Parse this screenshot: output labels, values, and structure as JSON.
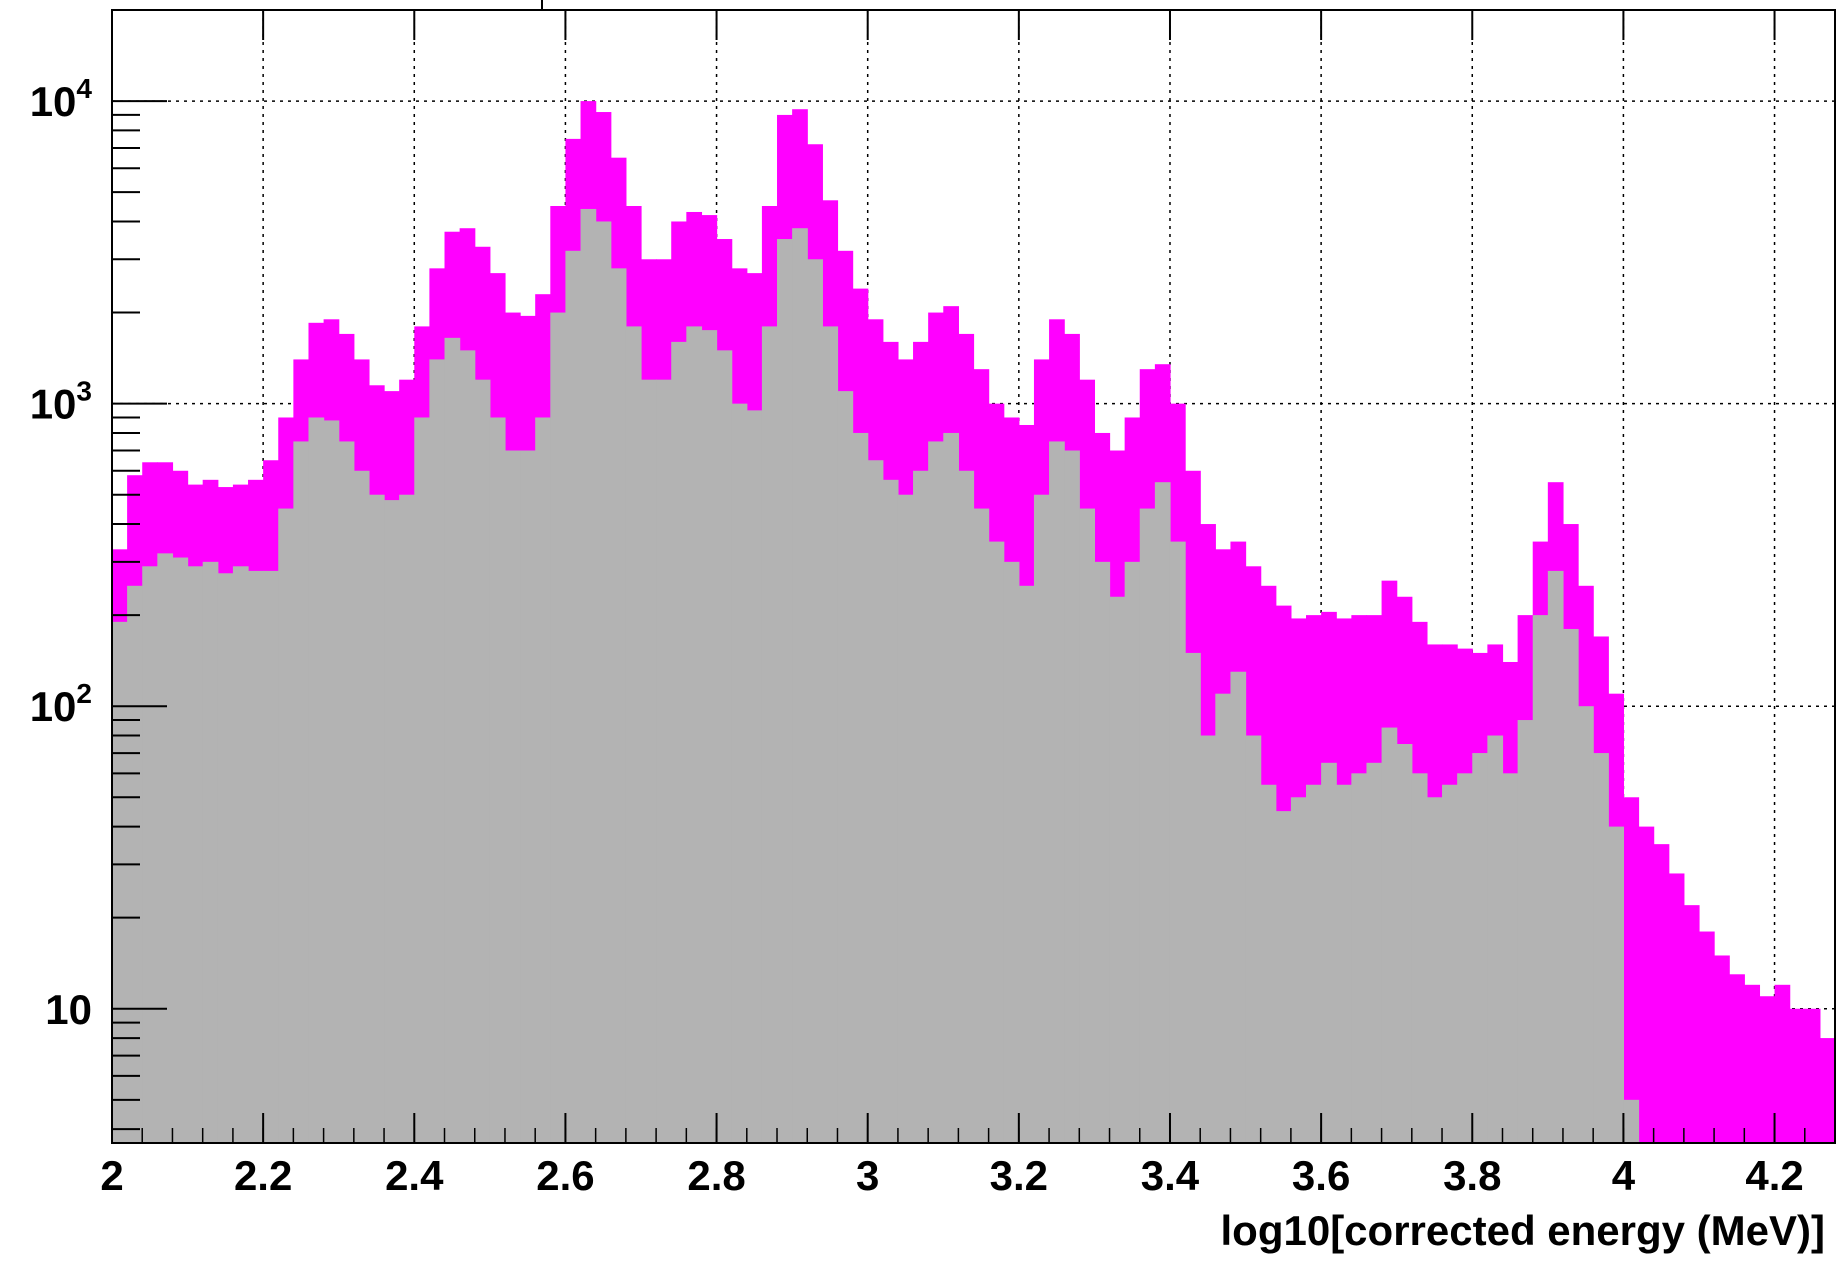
{
  "chart_data": {
    "type": "histogram",
    "title": "",
    "xlabel": "log10[corrected energy (MeV)]",
    "ylabel": "",
    "xlim": [
      2.0,
      4.28
    ],
    "ylim": [
      3.6,
      20000
    ],
    "y_scale": "log",
    "grid": true,
    "grid_style": "dotted",
    "legend": "none",
    "x_ticks": [
      {
        "value": 2.0,
        "label": "2"
      },
      {
        "value": 2.2,
        "label": "2.2"
      },
      {
        "value": 2.4,
        "label": "2.4"
      },
      {
        "value": 2.6,
        "label": "2.6"
      },
      {
        "value": 2.8,
        "label": "2.8"
      },
      {
        "value": 3.0,
        "label": "3"
      },
      {
        "value": 3.2,
        "label": "3.2"
      },
      {
        "value": 3.4,
        "label": "3.4"
      },
      {
        "value": 3.6,
        "label": "3.6"
      },
      {
        "value": 3.8,
        "label": "3.8"
      },
      {
        "value": 4.0,
        "label": "4"
      },
      {
        "value": 4.2,
        "label": "4.2"
      }
    ],
    "y_ticks": [
      {
        "value": 10,
        "base": "10",
        "exp": ""
      },
      {
        "value": 100,
        "base": "10",
        "exp": "2"
      },
      {
        "value": 1000,
        "base": "10",
        "exp": "3"
      },
      {
        "value": 10000,
        "base": "10",
        "exp": "4"
      }
    ],
    "series": [
      {
        "color": "#ff00ff",
        "points": [
          [
            2.0,
            330
          ],
          [
            2.02,
            580
          ],
          [
            2.04,
            640
          ],
          [
            2.06,
            640
          ],
          [
            2.08,
            600
          ],
          [
            2.1,
            540
          ],
          [
            2.12,
            560
          ],
          [
            2.14,
            530
          ],
          [
            2.16,
            540
          ],
          [
            2.18,
            560
          ],
          [
            2.2,
            650
          ],
          [
            2.22,
            900
          ],
          [
            2.24,
            1400
          ],
          [
            2.26,
            1850
          ],
          [
            2.28,
            1900
          ],
          [
            2.3,
            1700
          ],
          [
            2.32,
            1400
          ],
          [
            2.34,
            1150
          ],
          [
            2.36,
            1100
          ],
          [
            2.38,
            1200
          ],
          [
            2.4,
            1800
          ],
          [
            2.42,
            2800
          ],
          [
            2.44,
            3700
          ],
          [
            2.46,
            3800
          ],
          [
            2.48,
            3300
          ],
          [
            2.5,
            2700
          ],
          [
            2.52,
            2000
          ],
          [
            2.54,
            1950
          ],
          [
            2.56,
            2300
          ],
          [
            2.58,
            4500
          ],
          [
            2.6,
            7500
          ],
          [
            2.62,
            10000
          ],
          [
            2.64,
            9200
          ],
          [
            2.66,
            6500
          ],
          [
            2.68,
            4500
          ],
          [
            2.7,
            3000
          ],
          [
            2.72,
            3000
          ],
          [
            2.74,
            4000
          ],
          [
            2.76,
            4300
          ],
          [
            2.78,
            4200
          ],
          [
            2.8,
            3500
          ],
          [
            2.82,
            2800
          ],
          [
            2.84,
            2700
          ],
          [
            2.86,
            4500
          ],
          [
            2.88,
            9000
          ],
          [
            2.9,
            9400
          ],
          [
            2.92,
            7200
          ],
          [
            2.94,
            4700
          ],
          [
            2.96,
            3200
          ],
          [
            2.98,
            2400
          ],
          [
            3.0,
            1900
          ],
          [
            3.02,
            1600
          ],
          [
            3.04,
            1400
          ],
          [
            3.06,
            1600
          ],
          [
            3.08,
            2000
          ],
          [
            3.1,
            2100
          ],
          [
            3.12,
            1700
          ],
          [
            3.14,
            1300
          ],
          [
            3.16,
            1000
          ],
          [
            3.18,
            900
          ],
          [
            3.2,
            850
          ],
          [
            3.22,
            1400
          ],
          [
            3.24,
            1900
          ],
          [
            3.26,
            1700
          ],
          [
            3.28,
            1200
          ],
          [
            3.3,
            800
          ],
          [
            3.32,
            700
          ],
          [
            3.34,
            900
          ],
          [
            3.36,
            1300
          ],
          [
            3.38,
            1350
          ],
          [
            3.4,
            1000
          ],
          [
            3.42,
            600
          ],
          [
            3.44,
            400
          ],
          [
            3.46,
            330
          ],
          [
            3.48,
            350
          ],
          [
            3.5,
            290
          ],
          [
            3.52,
            250
          ],
          [
            3.54,
            215
          ],
          [
            3.56,
            195
          ],
          [
            3.58,
            200
          ],
          [
            3.6,
            205
          ],
          [
            3.62,
            195
          ],
          [
            3.64,
            200
          ],
          [
            3.66,
            200
          ],
          [
            3.68,
            260
          ],
          [
            3.7,
            230
          ],
          [
            3.72,
            190
          ],
          [
            3.74,
            160
          ],
          [
            3.76,
            160
          ],
          [
            3.78,
            155
          ],
          [
            3.8,
            150
          ],
          [
            3.82,
            160
          ],
          [
            3.84,
            140
          ],
          [
            3.86,
            200
          ],
          [
            3.88,
            350
          ],
          [
            3.9,
            550
          ],
          [
            3.92,
            400
          ],
          [
            3.94,
            250
          ],
          [
            3.96,
            170
          ],
          [
            3.98,
            110
          ],
          [
            4.0,
            50
          ],
          [
            4.02,
            40
          ],
          [
            4.04,
            35
          ],
          [
            4.06,
            28
          ],
          [
            4.08,
            22
          ],
          [
            4.1,
            18
          ],
          [
            4.12,
            15
          ],
          [
            4.14,
            13
          ],
          [
            4.16,
            12
          ],
          [
            4.18,
            11
          ],
          [
            4.2,
            12
          ],
          [
            4.22,
            10
          ],
          [
            4.24,
            10
          ],
          [
            4.26,
            8
          ]
        ]
      },
      {
        "color": "#b3b3b3",
        "points": [
          [
            2.0,
            190
          ],
          [
            2.02,
            250
          ],
          [
            2.04,
            290
          ],
          [
            2.06,
            320
          ],
          [
            2.08,
            310
          ],
          [
            2.1,
            290
          ],
          [
            2.12,
            300
          ],
          [
            2.14,
            275
          ],
          [
            2.16,
            290
          ],
          [
            2.18,
            280
          ],
          [
            2.2,
            280
          ],
          [
            2.22,
            450
          ],
          [
            2.24,
            750
          ],
          [
            2.26,
            900
          ],
          [
            2.28,
            880
          ],
          [
            2.3,
            750
          ],
          [
            2.32,
            600
          ],
          [
            2.34,
            500
          ],
          [
            2.36,
            480
          ],
          [
            2.38,
            500
          ],
          [
            2.4,
            900
          ],
          [
            2.42,
            1400
          ],
          [
            2.44,
            1650
          ],
          [
            2.46,
            1500
          ],
          [
            2.48,
            1200
          ],
          [
            2.5,
            900
          ],
          [
            2.52,
            700
          ],
          [
            2.54,
            700
          ],
          [
            2.56,
            900
          ],
          [
            2.58,
            2000
          ],
          [
            2.6,
            3200
          ],
          [
            2.62,
            4400
          ],
          [
            2.64,
            4000
          ],
          [
            2.66,
            2800
          ],
          [
            2.68,
            1800
          ],
          [
            2.7,
            1200
          ],
          [
            2.72,
            1200
          ],
          [
            2.74,
            1600
          ],
          [
            2.76,
            1800
          ],
          [
            2.78,
            1750
          ],
          [
            2.8,
            1500
          ],
          [
            2.82,
            1000
          ],
          [
            2.84,
            950
          ],
          [
            2.86,
            1800
          ],
          [
            2.88,
            3500
          ],
          [
            2.9,
            3800
          ],
          [
            2.92,
            3000
          ],
          [
            2.94,
            1800
          ],
          [
            2.96,
            1100
          ],
          [
            2.98,
            800
          ],
          [
            3.0,
            650
          ],
          [
            3.02,
            560
          ],
          [
            3.04,
            500
          ],
          [
            3.06,
            600
          ],
          [
            3.08,
            750
          ],
          [
            3.1,
            800
          ],
          [
            3.12,
            600
          ],
          [
            3.14,
            450
          ],
          [
            3.16,
            350
          ],
          [
            3.18,
            300
          ],
          [
            3.2,
            250
          ],
          [
            3.22,
            500
          ],
          [
            3.24,
            750
          ],
          [
            3.26,
            700
          ],
          [
            3.28,
            450
          ],
          [
            3.3,
            300
          ],
          [
            3.32,
            230
          ],
          [
            3.34,
            300
          ],
          [
            3.36,
            450
          ],
          [
            3.38,
            550
          ],
          [
            3.4,
            350
          ],
          [
            3.42,
            150
          ],
          [
            3.44,
            80
          ],
          [
            3.46,
            110
          ],
          [
            3.48,
            130
          ],
          [
            3.5,
            80
          ],
          [
            3.52,
            55
          ],
          [
            3.54,
            45
          ],
          [
            3.56,
            50
          ],
          [
            3.58,
            55
          ],
          [
            3.6,
            65
          ],
          [
            3.62,
            55
          ],
          [
            3.64,
            60
          ],
          [
            3.66,
            65
          ],
          [
            3.68,
            85
          ],
          [
            3.7,
            75
          ],
          [
            3.72,
            60
          ],
          [
            3.74,
            50
          ],
          [
            3.76,
            55
          ],
          [
            3.78,
            60
          ],
          [
            3.8,
            70
          ],
          [
            3.82,
            80
          ],
          [
            3.84,
            60
          ],
          [
            3.86,
            90
          ],
          [
            3.88,
            200
          ],
          [
            3.9,
            280
          ],
          [
            3.92,
            180
          ],
          [
            3.94,
            100
          ],
          [
            3.96,
            70
          ],
          [
            3.98,
            40
          ],
          [
            4.0,
            5
          ]
        ]
      }
    ]
  }
}
